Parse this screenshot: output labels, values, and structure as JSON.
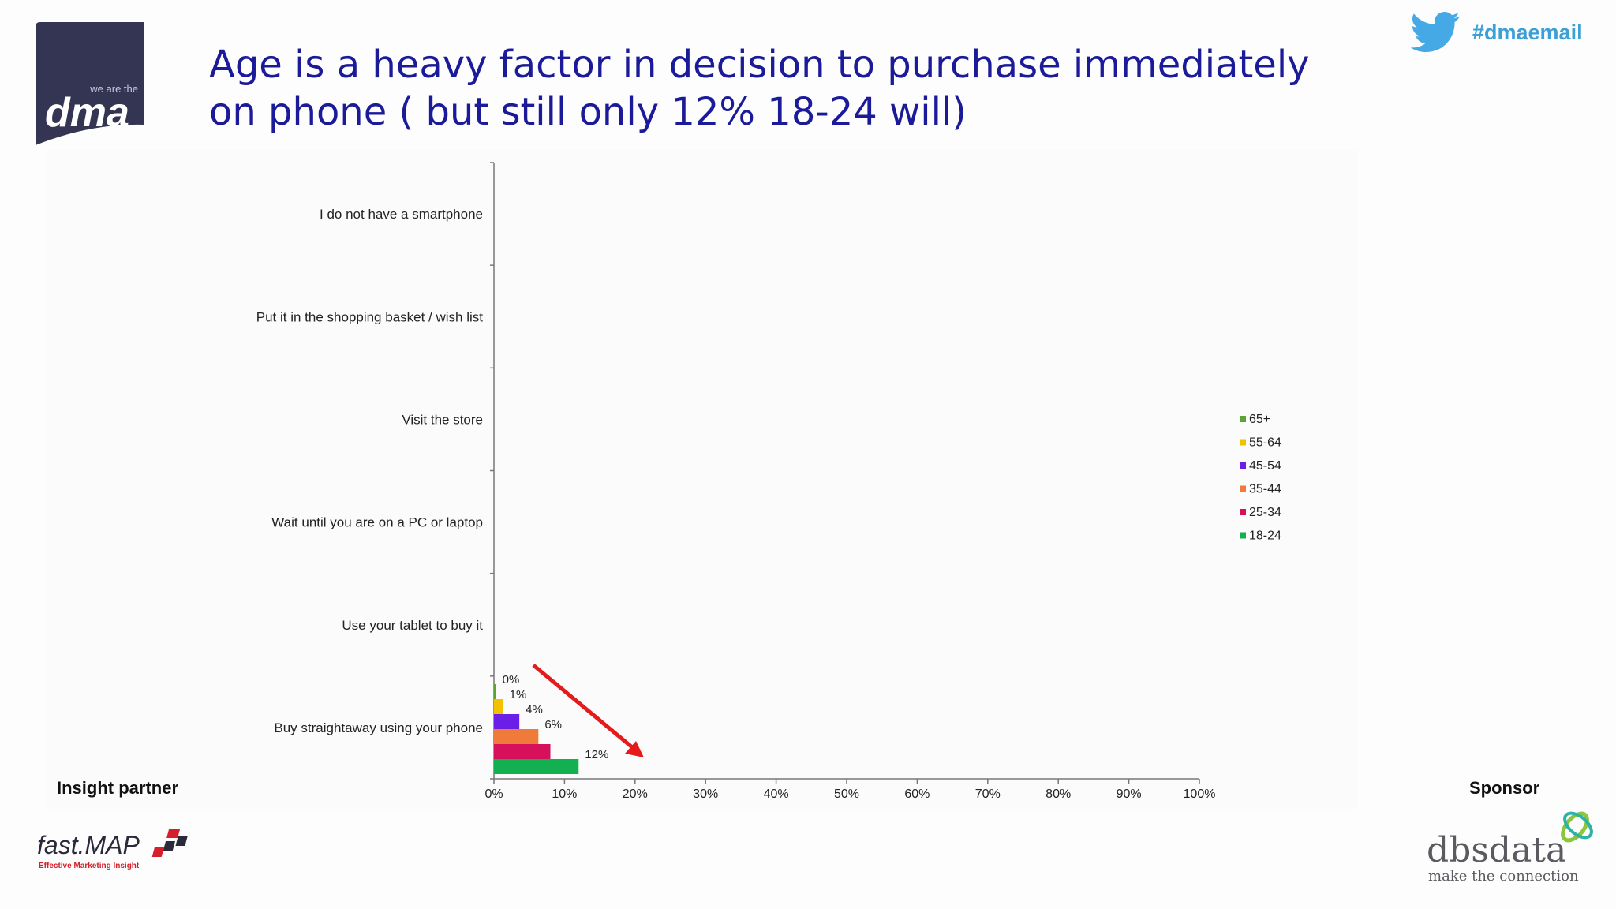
{
  "title": "Age is a heavy factor in decision to purchase immediately on phone ( but still only 12% 18-24 will)",
  "hashtag": "#dmaemail",
  "logos": {
    "dma_small": "we are the",
    "dma_big": "dma",
    "fastmap_main": "fast.MAP",
    "fastmap_sub": "Effective Marketing Insight",
    "dbs_main": "dbsdata",
    "dbs_sub": "make the connection"
  },
  "footer": {
    "insight_partner": "Insight partner",
    "sponsor": "Sponsor"
  },
  "colors": {
    "title": "#1b1b99",
    "hashtag": "#3b9fd8",
    "arrow": "#e51b1b"
  },
  "chart_data": {
    "type": "bar",
    "orientation": "horizontal",
    "categories": [
      "I do not have a smartphone",
      "Put it in the shopping basket / wish list",
      "Visit the store",
      "Wait until you are on a PC or laptop",
      "Use your tablet to buy it",
      "Buy straightaway using your phone"
    ],
    "series": [
      {
        "name": "65+",
        "color": "#5aa532",
        "values": [
          null,
          null,
          null,
          null,
          null,
          0.3
        ]
      },
      {
        "name": "55-64",
        "color": "#f2c200",
        "values": [
          null,
          null,
          null,
          null,
          null,
          1.3
        ]
      },
      {
        "name": "45-54",
        "color": "#6a1ee6",
        "values": [
          null,
          null,
          null,
          null,
          null,
          3.6
        ]
      },
      {
        "name": "35-44",
        "color": "#f07a3a",
        "values": [
          null,
          null,
          null,
          null,
          null,
          6.3
        ]
      },
      {
        "name": "25-34",
        "color": "#d6105a",
        "values": [
          null,
          null,
          null,
          null,
          null,
          8
        ]
      },
      {
        "name": "18-24",
        "color": "#12b050",
        "values": [
          null,
          null,
          null,
          null,
          null,
          12
        ]
      }
    ],
    "data_labels": [
      "0%",
      "1%",
      "4%",
      "6%",
      "",
      "12%"
    ],
    "xticks": [
      "0%",
      "10%",
      "20%",
      "30%",
      "40%",
      "50%",
      "60%",
      "70%",
      "80%",
      "90%",
      "100%"
    ],
    "xlim": [
      0,
      100
    ],
    "legend_position": "right",
    "legend_order": [
      "65+",
      "55-64",
      "45-54",
      "35-44",
      "25-34",
      "18-24"
    ]
  }
}
